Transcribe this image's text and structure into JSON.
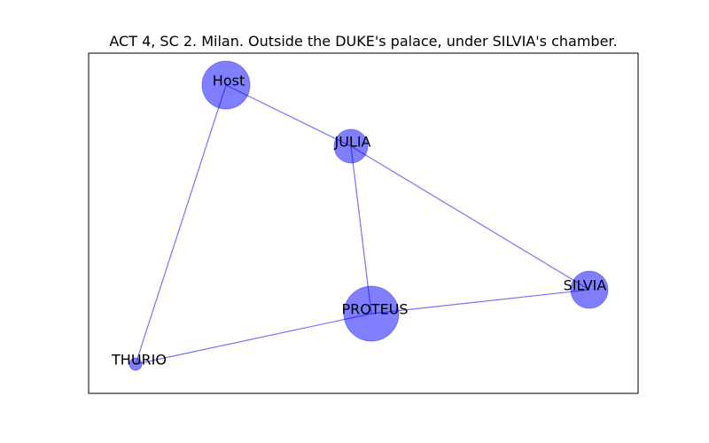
{
  "title": "ACT 4, SC 2. Milan. Outside the DUKE's palace, under SILVIA's chamber.",
  "colors": {
    "node_fill": "#0000ff",
    "node_opacity": 0.5,
    "edge_stroke": "#0000ff",
    "edge_opacity": 0.55,
    "frame": "#000000",
    "background": "#ffffff"
  },
  "network": {
    "nodes": [
      {
        "id": "Host",
        "label": "Host",
        "weight": 3
      },
      {
        "id": "JULIA",
        "label": "JULIA",
        "weight": 2
      },
      {
        "id": "SILVIA",
        "label": "SILVIA",
        "weight": 2
      },
      {
        "id": "PROTEUS",
        "label": "PROTEUS",
        "weight": 4
      },
      {
        "id": "THURIO",
        "label": "THURIO",
        "weight": 0.5
      }
    ],
    "edges": [
      {
        "source": "Host",
        "target": "JULIA"
      },
      {
        "source": "Host",
        "target": "THURIO"
      },
      {
        "source": "JULIA",
        "target": "PROTEUS"
      },
      {
        "source": "JULIA",
        "target": "SILVIA"
      },
      {
        "source": "PROTEUS",
        "target": "SILVIA"
      },
      {
        "source": "PROTEUS",
        "target": "THURIO"
      }
    ]
  }
}
